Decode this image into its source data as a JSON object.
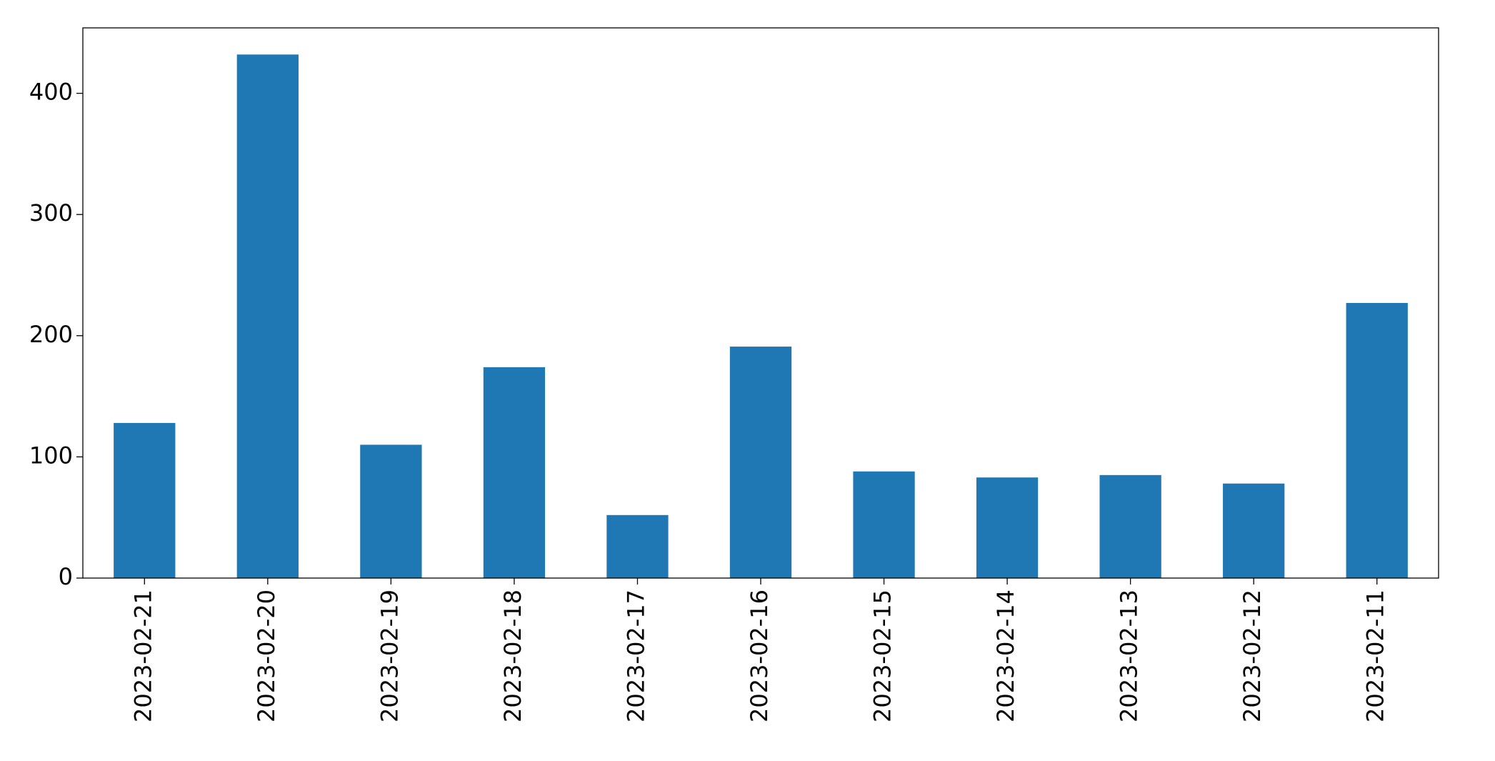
{
  "chart_data": {
    "type": "bar",
    "categories": [
      "2023-02-21",
      "2023-02-20",
      "2023-02-19",
      "2023-02-18",
      "2023-02-17",
      "2023-02-16",
      "2023-02-15",
      "2023-02-14",
      "2023-02-13",
      "2023-02-12",
      "2023-02-11"
    ],
    "values": [
      128,
      432,
      110,
      174,
      52,
      191,
      88,
      83,
      85,
      78,
      227
    ],
    "color": "#1f77b4",
    "ylim": [
      0,
      454
    ],
    "yticks": [
      0,
      100,
      200,
      300,
      400
    ],
    "grid": false
  }
}
